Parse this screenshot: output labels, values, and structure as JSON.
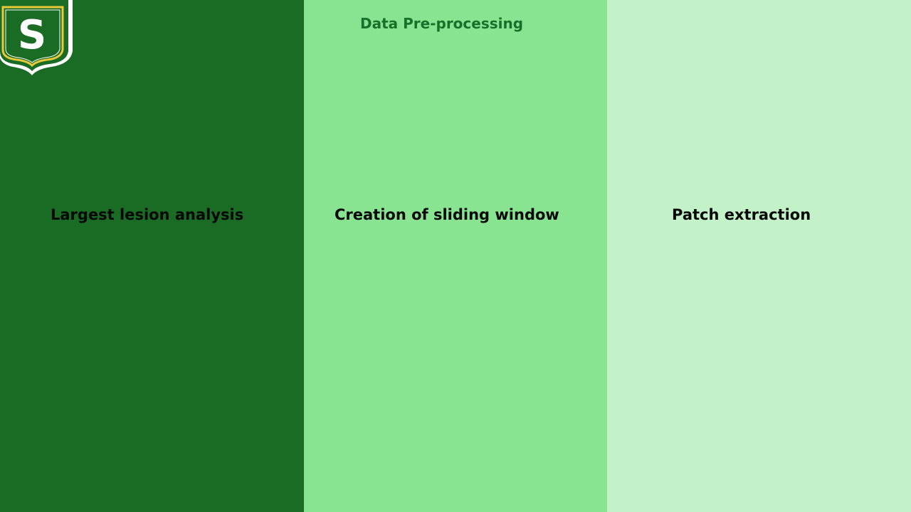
{
  "title": "Data Pre-processing",
  "columns": [
    {
      "label": "Largest lesion analysis",
      "color": "#1a6b24"
    },
    {
      "label": "Creation of sliding window",
      "color": "#89e492"
    },
    {
      "label": "Patch extraction",
      "color": "#c3f2c8"
    }
  ],
  "logo": {
    "letter": "S",
    "icon": "shield-logo-icon",
    "colors": {
      "shield": "#1a6b24",
      "trim": "#e8c93a",
      "outline": "#ffffff"
    }
  },
  "colors": {
    "title": "#18702a",
    "label": "#050805"
  }
}
